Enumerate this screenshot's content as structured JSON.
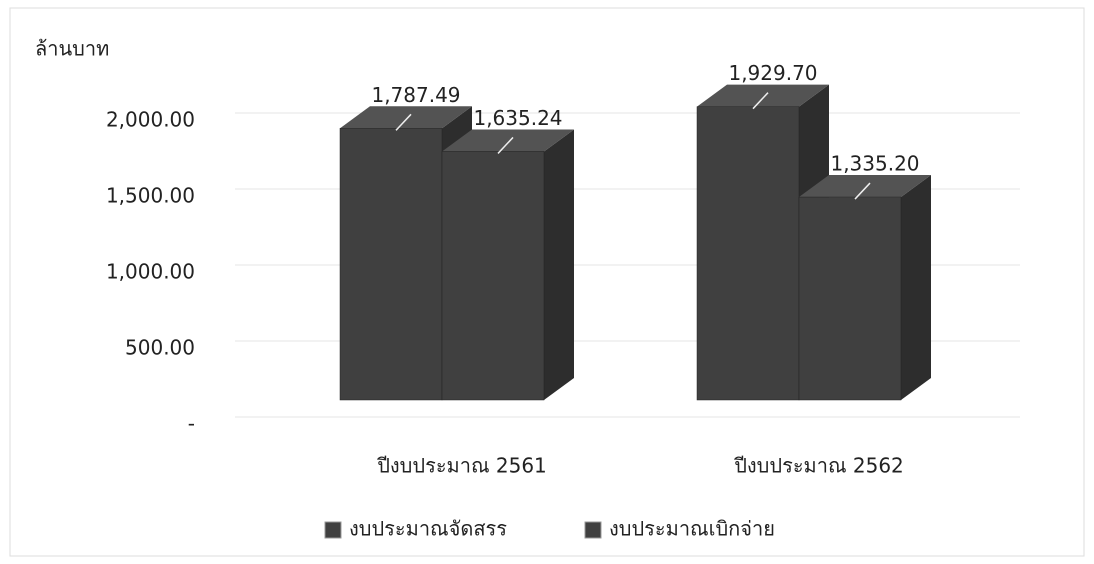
{
  "chart_data": {
    "type": "bar3d",
    "y_label": "ล้านบาท",
    "categories": [
      "ปีงบประมาณ 2561",
      "ปีงบประมาณ 2562"
    ],
    "series": [
      {
        "name": "งบประมาณจัดสรร",
        "color": "#404040",
        "values": [
          1787.49,
          1929.7
        ],
        "value_labels": [
          "1,787.49",
          "1,929.70"
        ]
      },
      {
        "name": "งบประมาณเบิกจ่าย",
        "color": "#404040",
        "values": [
          1635.24,
          1335.2
        ],
        "value_labels": [
          "1,635.24",
          "1,335.20"
        ]
      }
    ],
    "ylim": [
      0,
      2000
    ],
    "yticks": [
      {
        "value": 0,
        "label": "-"
      },
      {
        "value": 500,
        "label": "500.00"
      },
      {
        "value": 1000,
        "label": "1,000.00"
      },
      {
        "value": 1500,
        "label": "1,500.00"
      },
      {
        "value": 2000,
        "label": "2,000.00"
      }
    ],
    "grid": true,
    "legend": "bottom"
  }
}
